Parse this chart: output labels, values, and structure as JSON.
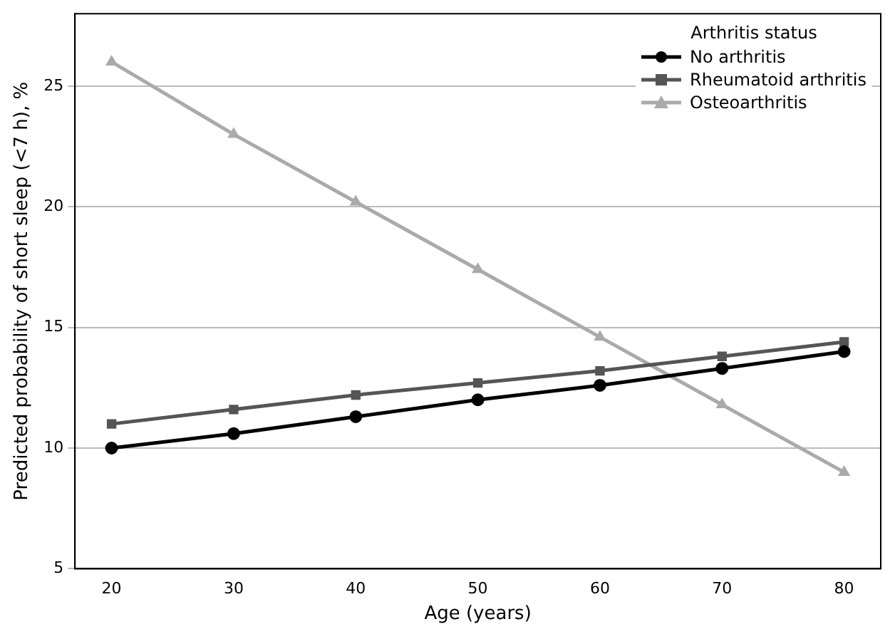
{
  "chart_data": {
    "type": "line",
    "xlabel": "Age (years)",
    "ylabel": "Predicted probability of short sleep (<7 h), %",
    "legend_title": "Arthritis status",
    "legend": "top right",
    "grid": "y",
    "line_style": "solid",
    "x": [
      20,
      30,
      40,
      50,
      60,
      70,
      80
    ],
    "xlim": [
      17,
      83
    ],
    "xticks": [
      20,
      30,
      40,
      50,
      60,
      70,
      80
    ],
    "ylim": [
      5,
      28
    ],
    "yticks": [
      5,
      10,
      15,
      20,
      25
    ],
    "series": [
      {
        "name": "No arthritis",
        "color": "#000000",
        "marker": "circle",
        "values": [
          10.0,
          10.6,
          11.3,
          12.0,
          12.6,
          13.3,
          14.0
        ]
      },
      {
        "name": "Rheumatoid arthritis",
        "color": "#555555",
        "marker": "square",
        "values": [
          11.0,
          11.6,
          12.2,
          12.7,
          13.2,
          13.8,
          14.4
        ]
      },
      {
        "name": "Osteoarthritis",
        "color": "#aaaaaa",
        "marker": "triangle",
        "values": [
          26.0,
          23.0,
          20.2,
          17.4,
          14.6,
          11.8,
          9.0
        ]
      }
    ]
  }
}
